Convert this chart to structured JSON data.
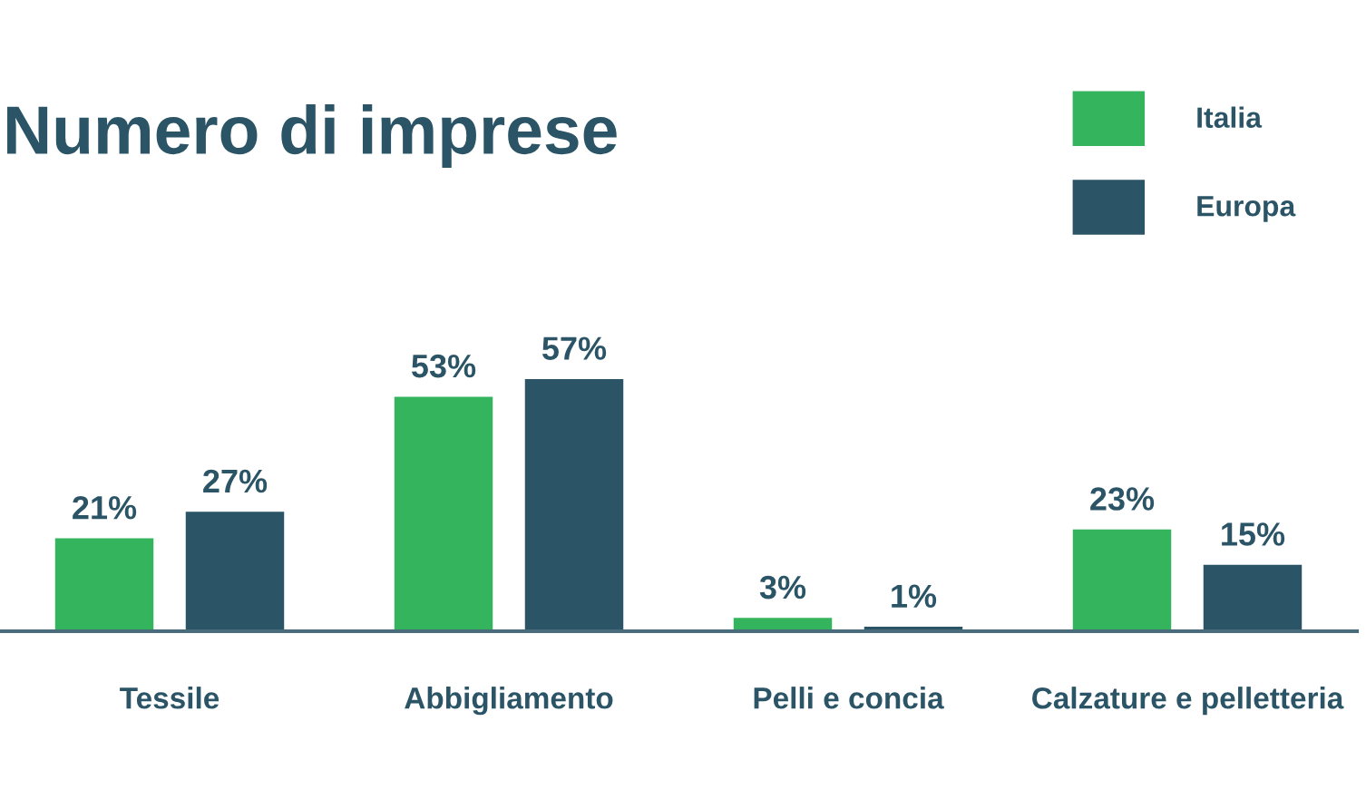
{
  "chart_data": {
    "type": "bar",
    "title": "Numero di imprese",
    "categories": [
      "Tessile",
      "Abbigliamento",
      "Pelli e concia",
      "Calzature e pelletteria"
    ],
    "series": [
      {
        "name": "Italia",
        "color": "#35b45e",
        "values": [
          21,
          53,
          3,
          23
        ],
        "value_labels": [
          "21%",
          "53%",
          "3%",
          "23%"
        ]
      },
      {
        "name": "Europa",
        "color": "#2b5566",
        "values": [
          27,
          57,
          1,
          15
        ],
        "value_labels": [
          "27%",
          "57%",
          "1%",
          "15%"
        ]
      }
    ],
    "legend": "top right",
    "grid": false
  }
}
